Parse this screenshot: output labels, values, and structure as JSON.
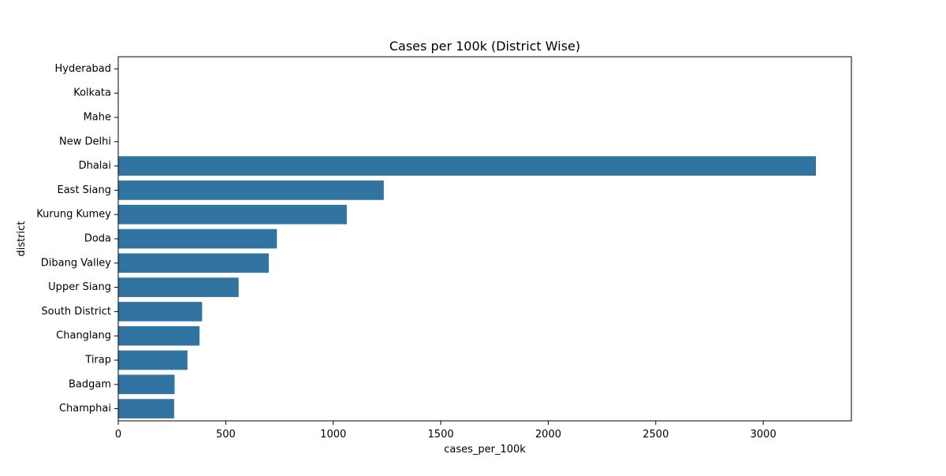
{
  "chart_data": {
    "type": "bar",
    "orientation": "horizontal",
    "title": "Cases per 100k (District Wise)",
    "xlabel": "cases_per_100k",
    "ylabel": "district",
    "categories": [
      "Hyderabad",
      "Kolkata",
      "Mahe",
      "New Delhi",
      "Dhalai",
      "East Siang",
      "Kurung Kumey",
      "Doda",
      "Dibang Valley",
      "Upper Siang",
      "South District",
      "Changlang",
      "Tirap",
      "Badgam",
      "Champhai"
    ],
    "values": [
      0,
      0,
      0,
      0,
      3245,
      1235,
      1063,
      738,
      700,
      560,
      390,
      378,
      322,
      262,
      260
    ],
    "xlim": [
      0,
      3410
    ],
    "xticks": [
      0,
      500,
      1000,
      1500,
      2000,
      2500,
      3000
    ],
    "grid": false,
    "legend": "none",
    "colors": {
      "bar": "#3274a1",
      "axis": "#000000",
      "background": "#ffffff"
    }
  }
}
